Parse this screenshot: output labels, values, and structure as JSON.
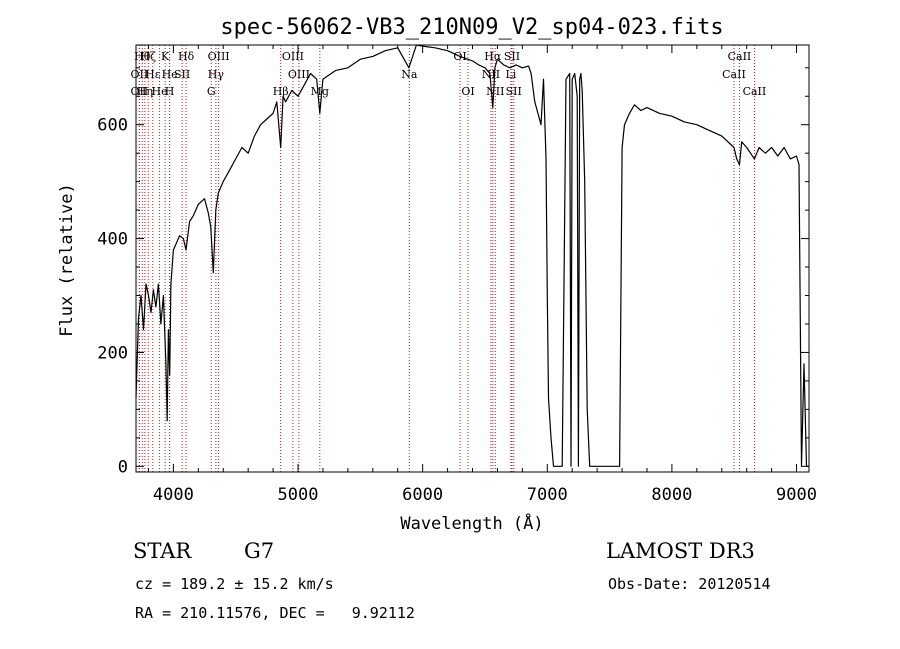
{
  "chart_data": {
    "type": "line",
    "title": "spec-56062-VB3_210N09_V2_sp04-023.fits",
    "xlabel": "Wavelength (Å)",
    "ylabel": "Flux (relative)",
    "xlim": [
      3700,
      9100
    ],
    "ylim": [
      -10,
      740
    ],
    "x_ticks": [
      4000,
      5000,
      6000,
      7000,
      8000,
      9000
    ],
    "x_tick_labels": [
      "4000",
      "5000",
      "6000",
      "7000",
      "8000",
      "9000"
    ],
    "y_ticks": [
      0,
      200,
      400,
      600
    ],
    "y_tick_labels": [
      "0",
      "200",
      "400",
      "600"
    ],
    "line_color": "#000000",
    "marker_color": "#b22222",
    "series": [
      {
        "name": "flux",
        "x": [
          3700,
          3720,
          3740,
          3760,
          3780,
          3800,
          3820,
          3840,
          3860,
          3880,
          3900,
          3920,
          3940,
          3950,
          3960,
          3970,
          3980,
          4000,
          4020,
          4050,
          4080,
          4101,
          4130,
          4160,
          4200,
          4250,
          4280,
          4300,
          4320,
          4340,
          4360,
          4400,
          4450,
          4500,
          4550,
          4600,
          4650,
          4700,
          4750,
          4800,
          4830,
          4861,
          4880,
          4900,
          4950,
          5000,
          5050,
          5100,
          5150,
          5175,
          5200,
          5300,
          5400,
          5500,
          5600,
          5700,
          5800,
          5890,
          5950,
          6000,
          6100,
          6200,
          6300,
          6400,
          6450,
          6500,
          6540,
          6563,
          6580,
          6600,
          6650,
          6700,
          6750,
          6800,
          6850,
          6870,
          6900,
          6950,
          6970,
          6990,
          7000,
          7010,
          7030,
          7050,
          7070,
          7090,
          7120,
          7150,
          7180,
          7190,
          7200,
          7220,
          7240,
          7250,
          7260,
          7270,
          7280,
          7300,
          7320,
          7340,
          7380,
          7450,
          7550,
          7580,
          7600,
          7620,
          7640,
          7660,
          7700,
          7750,
          7800,
          7900,
          8000,
          8100,
          8200,
          8300,
          8400,
          8498,
          8520,
          8542,
          8560,
          8600,
          8662,
          8700,
          8750,
          8800,
          8850,
          8900,
          8950,
          9000,
          9020,
          9040,
          9060,
          9080,
          9100
        ],
        "values": [
          120,
          260,
          300,
          240,
          320,
          300,
          270,
          310,
          280,
          320,
          250,
          300,
          180,
          80,
          240,
          160,
          320,
          380,
          390,
          405,
          400,
          380,
          430,
          440,
          460,
          470,
          445,
          420,
          340,
          450,
          480,
          500,
          520,
          540,
          560,
          550,
          580,
          600,
          610,
          620,
          640,
          560,
          650,
          640,
          660,
          650,
          670,
          690,
          680,
          620,
          680,
          695,
          700,
          715,
          720,
          730,
          735,
          700,
          740,
          738,
          735,
          730,
          720,
          712,
          705,
          700,
          690,
          630,
          700,
          715,
          705,
          700,
          705,
          700,
          703,
          690,
          640,
          600,
          680,
          540,
          300,
          120,
          50,
          0,
          0,
          0,
          0,
          680,
          690,
          0,
          680,
          690,
          650,
          0,
          680,
          690,
          660,
          500,
          100,
          0,
          0,
          0,
          0,
          0,
          560,
          600,
          610,
          620,
          635,
          625,
          630,
          620,
          615,
          605,
          600,
          590,
          580,
          560,
          540,
          530,
          570,
          560,
          540,
          560,
          550,
          560,
          545,
          560,
          540,
          545,
          530,
          0,
          180,
          0,
          0
        ]
      }
    ],
    "line_markers": [
      {
        "x": 3727,
        "label": "OII",
        "row": 1
      },
      {
        "x": 3727,
        "label": "OII",
        "row": 2
      },
      {
        "x": 3750,
        "label": "Hθ",
        "row": 0
      },
      {
        "x": 3771,
        "label": "Hη",
        "row": 2
      },
      {
        "x": 3798,
        "label": "Hζ",
        "row": 0
      },
      {
        "x": 3835,
        "label": "Hε",
        "row": 1
      },
      {
        "x": 3889,
        "label": "He",
        "row": 2
      },
      {
        "x": 3934,
        "label": "K",
        "row": 0
      },
      {
        "x": 3969,
        "label": "H",
        "row": 2
      },
      {
        "x": 3970,
        "label": "He",
        "row": 1
      },
      {
        "x": 4070,
        "label": "SII",
        "row": 1
      },
      {
        "x": 4102,
        "label": "Hδ",
        "row": 0
      },
      {
        "x": 4304,
        "label": "G",
        "row": 2
      },
      {
        "x": 4341,
        "label": "Hγ",
        "row": 1
      },
      {
        "x": 4363,
        "label": "OIII",
        "row": 0
      },
      {
        "x": 4861,
        "label": "Hβ",
        "row": 2
      },
      {
        "x": 4959,
        "label": "OIII",
        "row": 0
      },
      {
        "x": 5007,
        "label": "OIII",
        "row": 1
      },
      {
        "x": 5175,
        "label": "Mg",
        "row": 2
      },
      {
        "x": 5893,
        "label": "Na",
        "row": 1
      },
      {
        "x": 6300,
        "label": "OI",
        "row": 0
      },
      {
        "x": 6364,
        "label": "OI",
        "row": 2
      },
      {
        "x": 6548,
        "label": "NII",
        "row": 1
      },
      {
        "x": 6563,
        "label": "Hα",
        "row": 0
      },
      {
        "x": 6583,
        "label": "NII",
        "row": 2
      },
      {
        "x": 6708,
        "label": "Li",
        "row": 1
      },
      {
        "x": 6717,
        "label": "SII",
        "row": 0
      },
      {
        "x": 6731,
        "label": "SII",
        "row": 2
      },
      {
        "x": 8498,
        "label": "CaII",
        "row": 1
      },
      {
        "x": 8542,
        "label": "CaII",
        "row": 0
      },
      {
        "x": 8662,
        "label": "CaII",
        "row": 2
      }
    ]
  },
  "info": {
    "object_class": "STAR",
    "subclass": "G7",
    "survey": "LAMOST DR3",
    "redshift_line": "cz = 189.2 ± 15.2 km/s",
    "obs_date_line": "Obs-Date: 20120514",
    "coords_line": "RA = 210.11576, DEC =   9.92112"
  }
}
